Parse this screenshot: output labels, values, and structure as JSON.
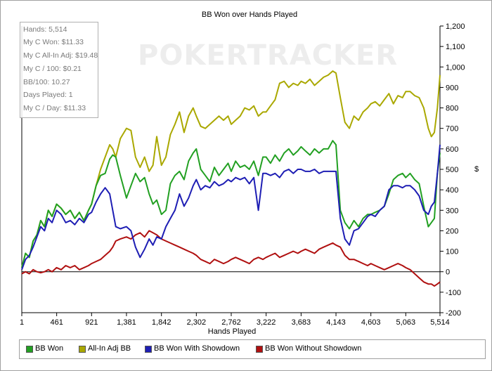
{
  "chart_data": {
    "type": "line",
    "title": "BB Won over Hands Played",
    "xlabel": "Hands Played",
    "ylabel": "$",
    "xlim": [
      1,
      5514
    ],
    "ylim": [
      -200,
      1200
    ],
    "x_ticks": [
      1,
      461,
      921,
      1381,
      1842,
      2302,
      2762,
      3222,
      3683,
      4143,
      4603,
      5063,
      5514
    ],
    "x_tick_labels": [
      "1",
      "461",
      "921",
      "1,381",
      "1,842",
      "2,302",
      "2,762",
      "3,222",
      "3,683",
      "4,143",
      "4,603",
      "5,063",
      "5,514"
    ],
    "y_ticks": [
      -200,
      -100,
      0,
      100,
      200,
      300,
      400,
      500,
      600,
      700,
      800,
      900,
      1000,
      1100,
      1200
    ],
    "y_tick_labels": [
      "-200",
      "-100",
      "0",
      "100",
      "200",
      "300",
      "400",
      "500",
      "600",
      "700",
      "800",
      "900",
      "1,000",
      "1,100",
      "1,200"
    ],
    "grid": false,
    "legend_position": "bottom",
    "series": [
      {
        "name": "BB Won",
        "color": "#22a022",
        "x": [
          1,
          50,
          100,
          150,
          200,
          250,
          300,
          350,
          400,
          460,
          520,
          580,
          640,
          700,
          760,
          820,
          880,
          921,
          980,
          1040,
          1100,
          1160,
          1200,
          1240,
          1300,
          1381,
          1440,
          1500,
          1560,
          1620,
          1680,
          1730,
          1780,
          1842,
          1900,
          1960,
          2020,
          2080,
          2140,
          2200,
          2260,
          2302,
          2360,
          2420,
          2480,
          2540,
          2600,
          2660,
          2720,
          2762,
          2820,
          2880,
          2940,
          3000,
          3060,
          3120,
          3180,
          3222,
          3280,
          3340,
          3400,
          3460,
          3520,
          3580,
          3640,
          3683,
          3740,
          3800,
          3860,
          3920,
          3980,
          4040,
          4100,
          4143,
          4200,
          4260,
          4320,
          4380,
          4440,
          4500,
          4560,
          4603,
          4660,
          4720,
          4780,
          4840,
          4900,
          4960,
          5020,
          5063,
          5120,
          5180,
          5240,
          5300,
          5360,
          5400,
          5440,
          5480,
          5514
        ],
        "y": [
          20,
          90,
          70,
          150,
          180,
          250,
          220,
          300,
          270,
          330,
          310,
          280,
          300,
          260,
          290,
          250,
          300,
          330,
          420,
          470,
          480,
          550,
          570,
          560,
          470,
          360,
          420,
          480,
          440,
          460,
          380,
          330,
          350,
          280,
          300,
          430,
          470,
          490,
          450,
          540,
          580,
          600,
          500,
          470,
          440,
          510,
          470,
          500,
          530,
          490,
          540,
          510,
          520,
          500,
          540,
          470,
          560,
          560,
          530,
          570,
          540,
          580,
          600,
          570,
          590,
          610,
          590,
          570,
          600,
          580,
          600,
          600,
          640,
          620,
          300,
          240,
          210,
          250,
          220,
          260,
          280,
          280,
          290,
          300,
          320,
          380,
          450,
          470,
          480,
          460,
          480,
          450,
          430,
          320,
          220,
          240,
          260,
          480,
          580
        ]
      },
      {
        "name": "All-In Adj BB",
        "color": "#aaa800",
        "x": [
          1,
          50,
          100,
          150,
          200,
          250,
          300,
          350,
          400,
          460,
          520,
          580,
          640,
          700,
          760,
          820,
          880,
          921,
          980,
          1040,
          1100,
          1160,
          1200,
          1240,
          1300,
          1381,
          1440,
          1500,
          1560,
          1620,
          1680,
          1730,
          1780,
          1842,
          1900,
          1960,
          2020,
          2080,
          2140,
          2200,
          2260,
          2302,
          2360,
          2420,
          2480,
          2540,
          2600,
          2660,
          2720,
          2762,
          2820,
          2880,
          2940,
          3000,
          3060,
          3120,
          3180,
          3222,
          3280,
          3340,
          3400,
          3460,
          3520,
          3580,
          3640,
          3683,
          3740,
          3800,
          3860,
          3920,
          3980,
          4040,
          4100,
          4143,
          4200,
          4260,
          4320,
          4380,
          4440,
          4500,
          4560,
          4603,
          4660,
          4720,
          4780,
          4840,
          4900,
          4960,
          5020,
          5063,
          5120,
          5180,
          5240,
          5300,
          5360,
          5400,
          5440,
          5480,
          5514
        ],
        "y": [
          20,
          90,
          70,
          150,
          180,
          250,
          220,
          300,
          270,
          330,
          310,
          280,
          300,
          260,
          290,
          250,
          300,
          330,
          420,
          500,
          560,
          620,
          600,
          560,
          650,
          700,
          690,
          560,
          510,
          560,
          490,
          520,
          660,
          520,
          560,
          670,
          720,
          780,
          680,
          760,
          800,
          760,
          710,
          700,
          720,
          740,
          760,
          740,
          760,
          720,
          740,
          760,
          800,
          790,
          810,
          760,
          780,
          780,
          810,
          840,
          920,
          930,
          900,
          920,
          910,
          930,
          920,
          940,
          910,
          930,
          950,
          960,
          980,
          970,
          850,
          730,
          700,
          760,
          740,
          780,
          800,
          820,
          830,
          810,
          840,
          870,
          820,
          860,
          850,
          880,
          880,
          860,
          850,
          800,
          700,
          660,
          680,
          800,
          960
        ]
      },
      {
        "name": "BB Won With Showdown",
        "color": "#1e1eb4",
        "x": [
          1,
          50,
          100,
          150,
          200,
          250,
          300,
          350,
          400,
          460,
          520,
          580,
          640,
          700,
          760,
          820,
          880,
          921,
          980,
          1040,
          1100,
          1160,
          1200,
          1240,
          1300,
          1381,
          1440,
          1500,
          1560,
          1620,
          1680,
          1730,
          1780,
          1842,
          1900,
          1960,
          2020,
          2080,
          2140,
          2200,
          2260,
          2302,
          2360,
          2420,
          2480,
          2540,
          2600,
          2660,
          2720,
          2762,
          2820,
          2880,
          2940,
          3000,
          3060,
          3120,
          3180,
          3222,
          3280,
          3340,
          3400,
          3460,
          3520,
          3580,
          3640,
          3683,
          3740,
          3800,
          3860,
          3920,
          3980,
          4040,
          4100,
          4143,
          4200,
          4260,
          4320,
          4380,
          4440,
          4500,
          4560,
          4603,
          4660,
          4720,
          4780,
          4840,
          4900,
          4960,
          5020,
          5063,
          5120,
          5180,
          5240,
          5300,
          5360,
          5400,
          5440,
          5480,
          5514
        ],
        "y": [
          10,
          60,
          80,
          120,
          170,
          220,
          200,
          260,
          240,
          300,
          280,
          240,
          250,
          230,
          260,
          240,
          280,
          290,
          340,
          380,
          410,
          380,
          300,
          220,
          210,
          220,
          200,
          120,
          70,
          110,
          160,
          130,
          170,
          160,
          220,
          260,
          300,
          380,
          320,
          360,
          420,
          450,
          400,
          420,
          410,
          440,
          420,
          430,
          450,
          440,
          460,
          450,
          460,
          430,
          460,
          300,
          480,
          480,
          470,
          480,
          460,
          490,
          500,
          480,
          500,
          500,
          490,
          490,
          500,
          480,
          490,
          490,
          490,
          490,
          260,
          160,
          130,
          200,
          210,
          240,
          270,
          280,
          270,
          300,
          320,
          400,
          420,
          420,
          410,
          420,
          420,
          400,
          370,
          300,
          280,
          320,
          340,
          480,
          620
        ]
      },
      {
        "name": "BB Won Without Showdown",
        "color": "#b01010",
        "x": [
          1,
          50,
          100,
          150,
          200,
          250,
          300,
          350,
          400,
          460,
          520,
          580,
          640,
          700,
          760,
          820,
          880,
          921,
          980,
          1040,
          1100,
          1160,
          1200,
          1240,
          1300,
          1381,
          1440,
          1500,
          1560,
          1620,
          1680,
          1730,
          1780,
          1842,
          1900,
          1960,
          2020,
          2080,
          2140,
          2200,
          2260,
          2302,
          2360,
          2420,
          2480,
          2540,
          2600,
          2660,
          2720,
          2762,
          2820,
          2880,
          2940,
          3000,
          3060,
          3120,
          3180,
          3222,
          3280,
          3340,
          3400,
          3460,
          3520,
          3580,
          3640,
          3683,
          3740,
          3800,
          3860,
          3920,
          3980,
          4040,
          4100,
          4143,
          4200,
          4260,
          4320,
          4380,
          4440,
          4500,
          4560,
          4603,
          4660,
          4720,
          4780,
          4840,
          4900,
          4960,
          5020,
          5063,
          5120,
          5180,
          5240,
          5300,
          5360,
          5400,
          5440,
          5480,
          5514
        ],
        "y": [
          -10,
          0,
          -10,
          10,
          0,
          -5,
          0,
          10,
          0,
          20,
          10,
          30,
          20,
          30,
          10,
          20,
          30,
          40,
          50,
          60,
          80,
          100,
          120,
          150,
          160,
          170,
          160,
          180,
          190,
          170,
          200,
          190,
          180,
          160,
          150,
          140,
          130,
          120,
          110,
          100,
          90,
          80,
          60,
          50,
          40,
          60,
          50,
          40,
          50,
          60,
          70,
          60,
          50,
          40,
          60,
          70,
          60,
          70,
          80,
          90,
          70,
          80,
          90,
          100,
          90,
          100,
          110,
          100,
          90,
          110,
          120,
          130,
          140,
          130,
          120,
          80,
          60,
          60,
          50,
          40,
          30,
          40,
          30,
          20,
          10,
          20,
          30,
          40,
          30,
          20,
          10,
          -10,
          -30,
          -50,
          -60,
          -60,
          -70,
          -60,
          -50
        ]
      }
    ]
  },
  "stats": [
    "Hands: 5,514",
    "My C Won: $11.33",
    "My C All-In Adj: $19.48",
    "My C / 100: $0.21",
    "BB/100: 10.27",
    "Days Played: 1",
    "My C / Day: $11.33"
  ],
  "watermark": "POKERTRACKER"
}
